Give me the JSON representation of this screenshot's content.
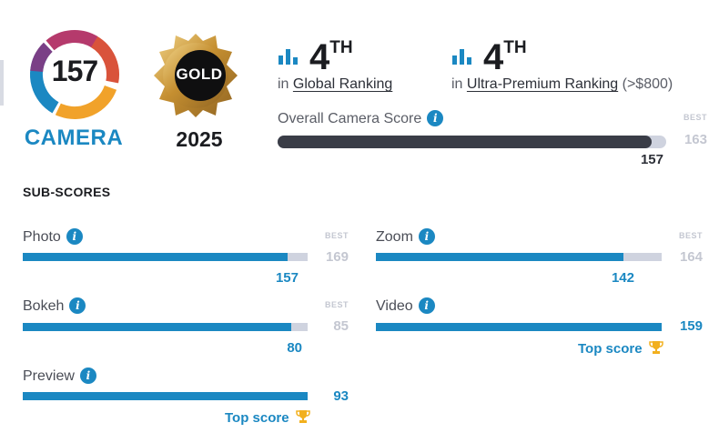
{
  "badge": {
    "score": "157",
    "label": "CAMERA",
    "award": "GOLD",
    "year": "2025"
  },
  "rankings": [
    {
      "rank": "4",
      "suffix": "TH",
      "prefix": "in",
      "link": "Global Ranking",
      "extra": ""
    },
    {
      "rank": "4",
      "suffix": "TH",
      "prefix": "in",
      "link": "Ultra-Premium Ranking",
      "extra": "(>$800)"
    }
  ],
  "overall": {
    "label": "Overall Camera Score",
    "best_label": "BEST",
    "best": "163",
    "score": "157",
    "fraction": 0.963
  },
  "subscores": {
    "title": "SUB-SCORES",
    "best_label": "BEST",
    "top_score_label": "Top score",
    "items": [
      {
        "label": "Photo",
        "score": "157",
        "best": "169",
        "fraction": 0.929,
        "top": false
      },
      {
        "label": "Zoom",
        "score": "142",
        "best": "164",
        "fraction": 0.866,
        "top": false
      },
      {
        "label": "Bokeh",
        "score": "80",
        "best": "85",
        "fraction": 0.941,
        "top": false
      },
      {
        "label": "Video",
        "score": "159",
        "best": "",
        "fraction": 1.0,
        "top": true
      },
      {
        "label": "Preview",
        "score": "93",
        "best": "",
        "fraction": 1.0,
        "top": true
      }
    ]
  },
  "colors": {
    "accent_blue": "#1b88c2",
    "dark_bar": "#3a3d47",
    "track": "#cfd3df",
    "gold": "#c99a3c",
    "trophy": "#f2b01e"
  },
  "icons": {
    "rank": "bar-chart-icon",
    "info": "info-icon",
    "trophy": "trophy-icon"
  }
}
